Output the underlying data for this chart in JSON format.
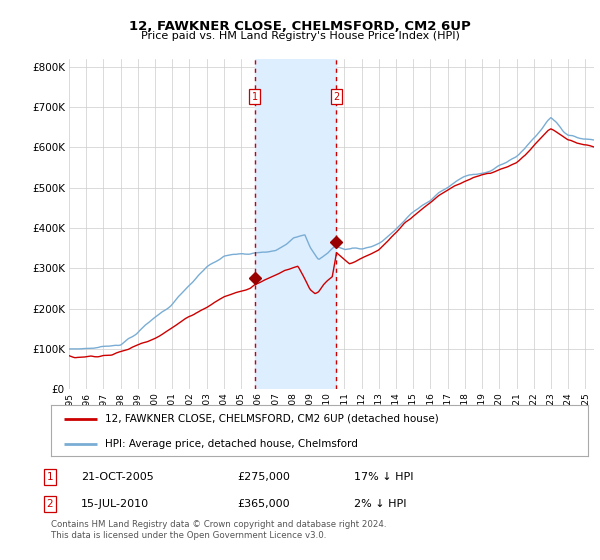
{
  "title": "12, FAWKNER CLOSE, CHELMSFORD, CM2 6UP",
  "subtitle": "Price paid vs. HM Land Registry's House Price Index (HPI)",
  "legend_line1": "12, FAWKNER CLOSE, CHELMSFORD, CM2 6UP (detached house)",
  "legend_line2": "HPI: Average price, detached house, Chelmsford",
  "table_row1": [
    "1",
    "21-OCT-2005",
    "£275,000",
    "17% ↓ HPI"
  ],
  "table_row2": [
    "2",
    "15-JUL-2010",
    "£365,000",
    "2% ↓ HPI"
  ],
  "footnote1": "Contains HM Land Registry data © Crown copyright and database right 2024.",
  "footnote2": "This data is licensed under the Open Government Licence v3.0.",
  "sale1_year": 2005.8,
  "sale1_price": 275000,
  "sale2_year": 2010.54,
  "sale2_price": 365000,
  "red_line_color": "#cc0000",
  "blue_line_color": "#7aadd4",
  "shade_color": "#ddeeff",
  "marker_color": "#990000",
  "dashed_line_color": "#cc0000",
  "grid_color": "#cccccc",
  "background_color": "#ffffff",
  "plot_bg_color": "#ffffff",
  "ylim": [
    0,
    820000
  ],
  "xmin": 1995,
  "xmax": 2025.5
}
